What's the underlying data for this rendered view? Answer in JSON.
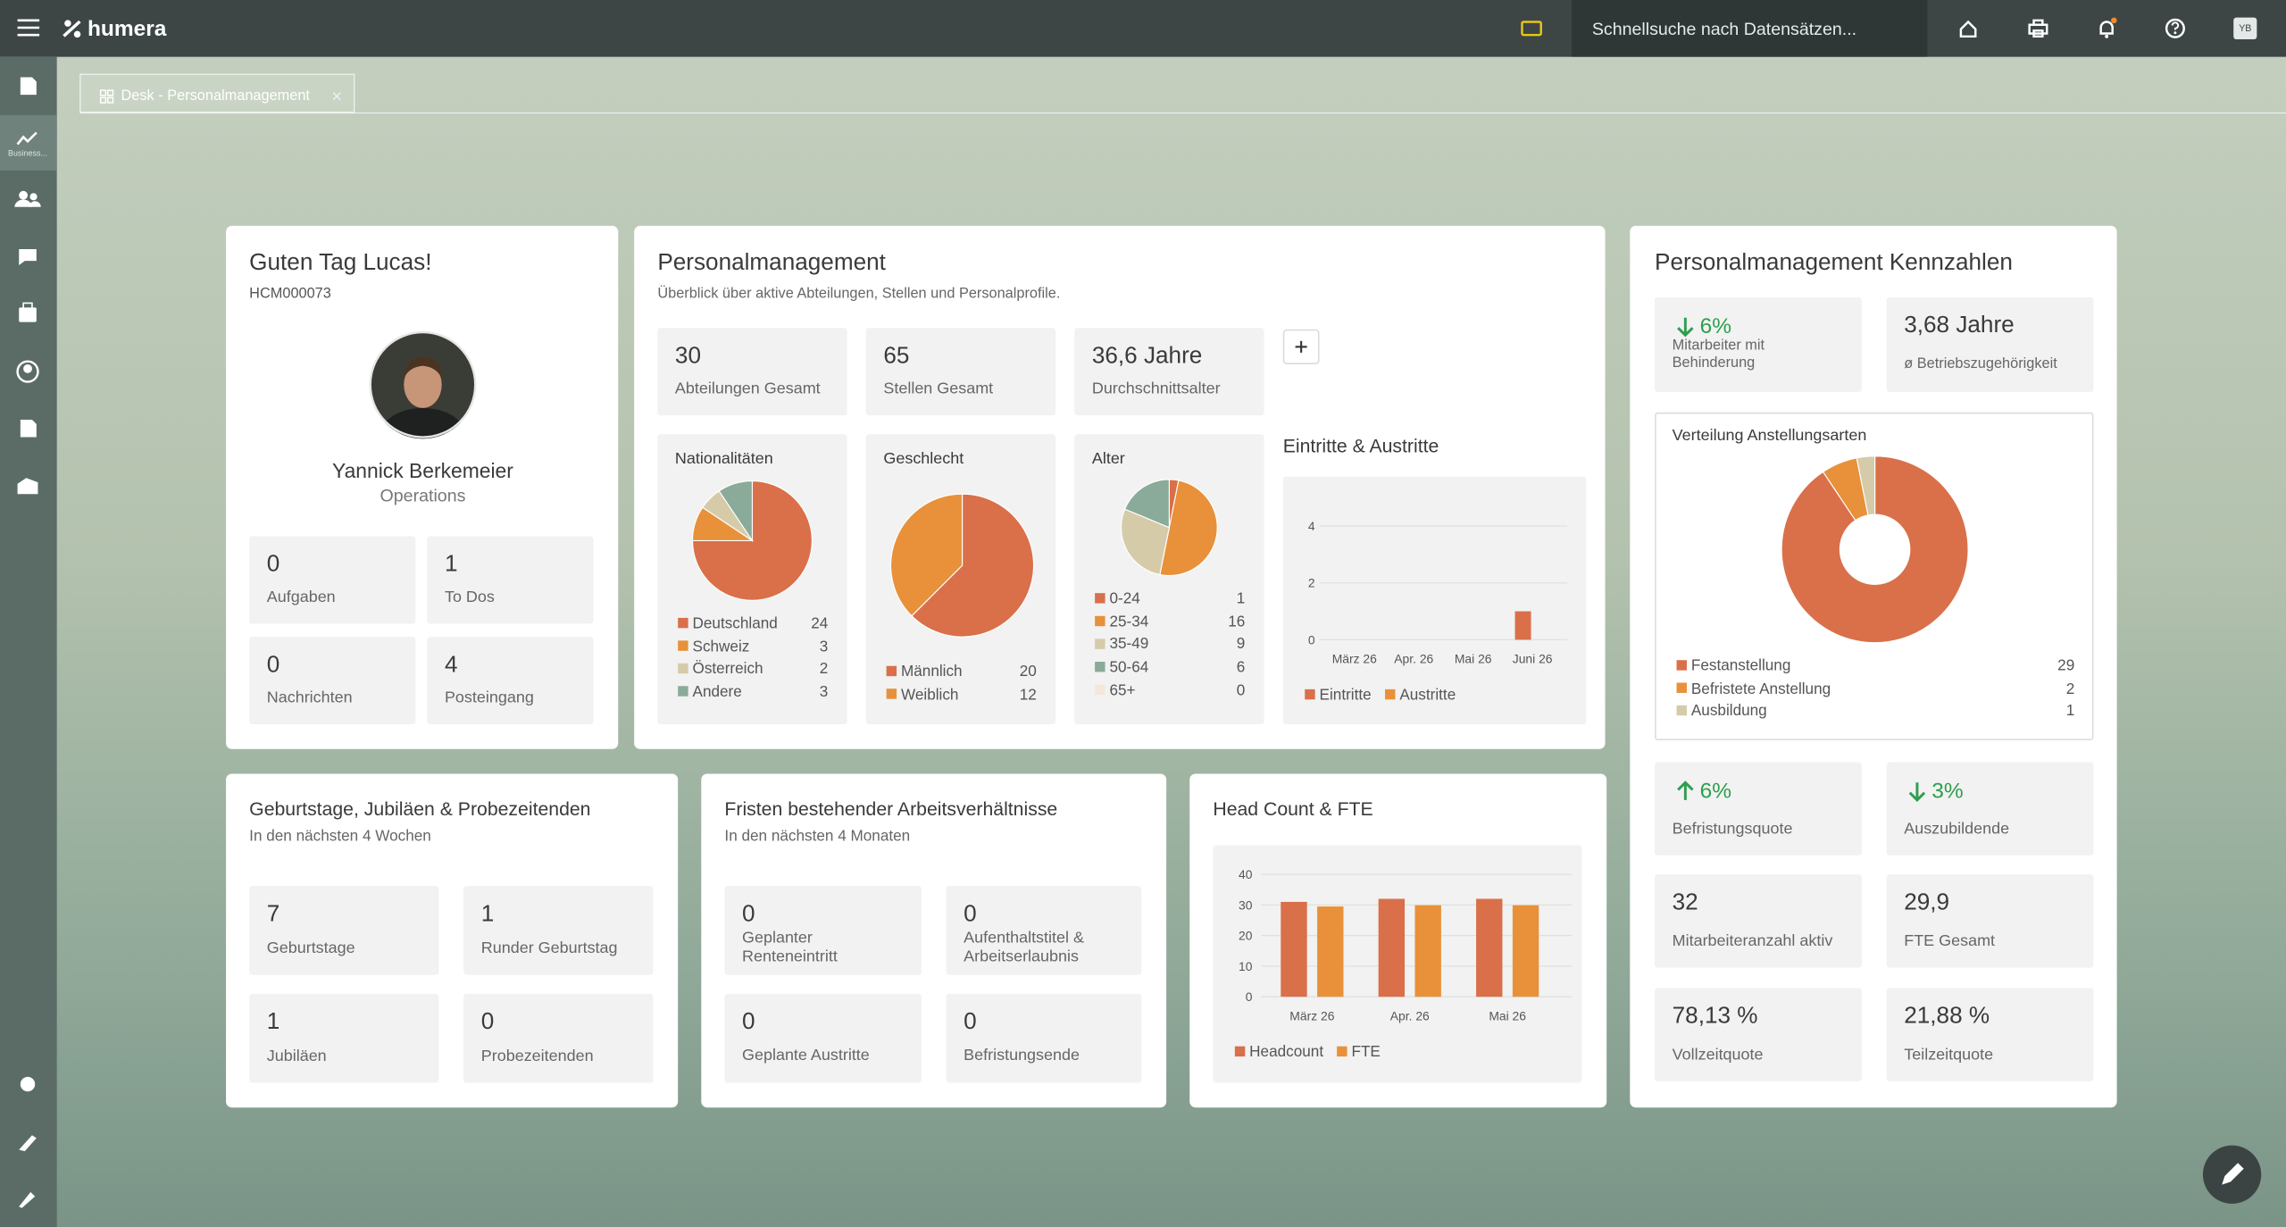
{
  "topbar": {
    "brand": "humera",
    "search_placeholder": "Schnellsuche nach Datensätzen...",
    "user_initials": "YB"
  },
  "sidebar": {
    "active_item": "Business..."
  },
  "tab": {
    "title": "Desk - Personalmanagement"
  },
  "greeting": {
    "title": "Guten Tag Lucas!",
    "user_id": "HCM000073",
    "employee": {
      "name": "Yannick Berkemeier",
      "department": "Operations"
    },
    "tiles": [
      {
        "value": 0,
        "label": "Aufgaben"
      },
      {
        "value": 1,
        "label": "To Dos"
      },
      {
        "value": 0,
        "label": "Nachrichten"
      },
      {
        "value": 4,
        "label": "Posteingang"
      }
    ]
  },
  "personalmanagement": {
    "title": "Personalmanagement",
    "subtitle": "Überblick über aktive Abteilungen, Stellen und Personalprofile.",
    "tiles": [
      {
        "value": 30,
        "label": "Abteilungen Gesamt"
      },
      {
        "value": 65,
        "label": "Stellen Gesamt"
      },
      {
        "value": "36,6 Jahre",
        "label": "Durchschnittsalter"
      }
    ]
  },
  "kennzahlen": {
    "title": "Personalmanagement Kennzahlen",
    "tiles": [
      {
        "value": "6%",
        "trend": "down",
        "label": "Mitarbeiter mit Behinderung"
      },
      {
        "value": "3,68 Jahre",
        "label": "ø Betriebszugehörigkeit"
      },
      {
        "value": "6%",
        "trend": "up",
        "label": "Befristungsquote"
      },
      {
        "value": "3%",
        "trend": "down",
        "label": "Auszubildende"
      },
      {
        "value": 32,
        "label": "Mitarbeiteranzahl aktiv"
      },
      {
        "value": "29,9",
        "label": "FTE Gesamt"
      },
      {
        "value": "78,13 %",
        "label": "Vollzeitquote"
      },
      {
        "value": "21,88 %",
        "label": "Teilzeitquote"
      }
    ]
  },
  "geburtstage": {
    "title": "Geburtstage, Jubiläen & Probezeitenden",
    "subtitle": "In den nächsten 4 Wochen",
    "tiles": [
      {
        "value": 7,
        "label": "Geburtstage"
      },
      {
        "value": 1,
        "label": "Runder Geburtstag"
      },
      {
        "value": 1,
        "label": "Jubiläen"
      },
      {
        "value": 0,
        "label": "Probezeitenden"
      }
    ]
  },
  "fristen": {
    "title": "Fristen bestehender Arbeitsverhältnisse",
    "subtitle": "In den nächsten 4 Monaten",
    "tiles": [
      {
        "value": 0,
        "label": "Geplanter Renteneintritt"
      },
      {
        "value": 0,
        "label": "Aufenthaltstitel & Arbeitserlaubnis"
      },
      {
        "value": 0,
        "label": "Geplante Austritte"
      },
      {
        "value": 0,
        "label": "Befristungsende"
      }
    ]
  },
  "chart_data": [
    {
      "type": "pie",
      "title": "Nationalitäten",
      "categories": [
        "Deutschland",
        "Schweiz",
        "Österreich",
        "Andere"
      ],
      "values": [
        24,
        3,
        2,
        3
      ],
      "colors": [
        "#d9704a",
        "#e8913a",
        "#d6cba9",
        "#8aab9a"
      ]
    },
    {
      "type": "pie",
      "title": "Geschlecht",
      "categories": [
        "Männlich",
        "Weiblich"
      ],
      "values": [
        20,
        12
      ],
      "colors": [
        "#d9704a",
        "#e8913a"
      ]
    },
    {
      "type": "pie",
      "title": "Alter",
      "categories": [
        "0-24",
        "25-34",
        "35-49",
        "50-64",
        "65+"
      ],
      "values": [
        1,
        16,
        9,
        6,
        0
      ],
      "colors": [
        "#d9704a",
        "#e8913a",
        "#d6cba9",
        "#8aab9a",
        "#f6e7da"
      ]
    },
    {
      "type": "bar",
      "title": "Eintritte & Austritte",
      "categories": [
        "März 26",
        "Apr. 26",
        "Mai 26",
        "Juni 26"
      ],
      "series": [
        {
          "name": "Eintritte",
          "color": "#d9704a",
          "values": [
            0,
            0,
            0,
            1
          ]
        },
        {
          "name": "Austritte",
          "color": "#e8913a",
          "values": [
            0,
            0,
            0,
            0
          ]
        }
      ],
      "ylim": [
        0,
        5
      ],
      "yticks": [
        0,
        2,
        4
      ],
      "grid": true
    },
    {
      "type": "bar",
      "title": "Head Count & FTE",
      "categories": [
        "März 26",
        "Apr. 26",
        "Mai 26"
      ],
      "series": [
        {
          "name": "Headcount",
          "color": "#d9704a",
          "values": [
            31,
            32,
            32
          ]
        },
        {
          "name": "FTE",
          "color": "#e8913a",
          "values": [
            29.5,
            29.9,
            29.9
          ]
        }
      ],
      "ylim": [
        0,
        45
      ],
      "yticks": [
        0,
        10,
        20,
        30,
        40
      ],
      "grid": true
    },
    {
      "type": "donut",
      "title": "Verteilung Anstellungsarten",
      "categories": [
        "Festanstellung",
        "Befristete Anstellung",
        "Ausbildung"
      ],
      "values": [
        29,
        2,
        1
      ],
      "colors": [
        "#d9704a",
        "#e8913a",
        "#d6cba9"
      ]
    }
  ]
}
